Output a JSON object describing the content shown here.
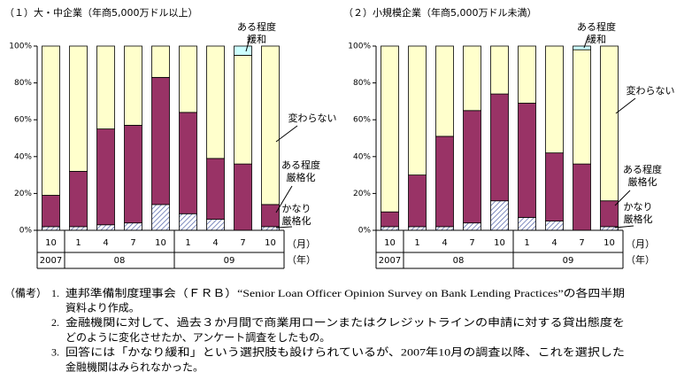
{
  "chart_data": [
    {
      "type": "stacked-bar",
      "title": "（１）大・中企業（年商5,000万ドル以上）",
      "categories": [
        "10",
        "1",
        "4",
        "7",
        "10",
        "1",
        "4",
        "7",
        "10"
      ],
      "year_groups": [
        {
          "label": "2007",
          "count": 1
        },
        {
          "label": "08",
          "count": 4
        },
        {
          "label": "09",
          "count": 4
        }
      ],
      "x_label": "（月）",
      "year_label": "（年）",
      "ylim": [
        0,
        100
      ],
      "yticks": [
        {
          "value": 0,
          "label": "0%"
        },
        {
          "value": 20,
          "label": "20%"
        },
        {
          "value": 40,
          "label": "40%"
        },
        {
          "value": 60,
          "label": "60%"
        },
        {
          "value": 80,
          "label": "80%"
        },
        {
          "value": 100,
          "label": "100%"
        }
      ],
      "series": [
        {
          "name": "かなり厳格化",
          "color": "#8f9bd0",
          "hatch": true,
          "values": [
            2,
            2,
            3,
            4,
            14,
            9,
            6,
            0,
            2
          ]
        },
        {
          "name": "ある程度厳格化",
          "color": "#993366",
          "values": [
            17,
            30,
            52,
            53,
            69,
            55,
            33,
            36,
            12
          ]
        },
        {
          "name": "変わらない",
          "color": "#ffffcc",
          "values": [
            81,
            68,
            45,
            43,
            17,
            36,
            61,
            59,
            86
          ]
        },
        {
          "name": "ある程度緩和",
          "color": "#ccffff",
          "values": [
            0,
            0,
            0,
            0,
            0,
            0,
            0,
            5,
            0
          ]
        }
      ]
    },
    {
      "type": "stacked-bar",
      "title": "（２）小規模企業（年商5,000万ドル未満）",
      "categories": [
        "10",
        "1",
        "4",
        "7",
        "10",
        "1",
        "4",
        "7",
        "10"
      ],
      "year_groups": [
        {
          "label": "2007",
          "count": 1
        },
        {
          "label": "08",
          "count": 4
        },
        {
          "label": "09",
          "count": 4
        }
      ],
      "x_label": "（月）",
      "year_label": "（年）",
      "ylim": [
        0,
        100
      ],
      "yticks": [
        {
          "value": 0,
          "label": "0%"
        },
        {
          "value": 20,
          "label": "20%"
        },
        {
          "value": 40,
          "label": "40%"
        },
        {
          "value": 60,
          "label": "60%"
        },
        {
          "value": 80,
          "label": "80%"
        },
        {
          "value": 100,
          "label": "100%"
        }
      ],
      "series": [
        {
          "name": "かなり厳格化",
          "color": "#8f9bd0",
          "hatch": true,
          "values": [
            2,
            2,
            2,
            4,
            16,
            7,
            5,
            0,
            2
          ]
        },
        {
          "name": "ある程度厳格化",
          "color": "#993366",
          "values": [
            8,
            28,
            49,
            61,
            58,
            62,
            37,
            36,
            14
          ]
        },
        {
          "name": "変わらない",
          "color": "#ffffcc",
          "values": [
            90,
            70,
            49,
            35,
            26,
            31,
            58,
            62,
            84
          ]
        },
        {
          "name": "ある程度緩和",
          "color": "#ccffff",
          "values": [
            0,
            0,
            0,
            0,
            0,
            0,
            0,
            2,
            0
          ]
        }
      ]
    }
  ],
  "notes": {
    "label": "（備考）",
    "items": [
      {
        "number": "1.",
        "lines": [
          "連邦準備制度理事会（ＦＲＢ）“Senior Loan Officer Opinion Survey on Bank Lending Practices”の各四半期",
          "資料より作成。"
        ]
      },
      {
        "number": "2.",
        "lines": [
          "金融機関に対して、過去３か月間で商業用ローンまたはクレジットラインの申請に対する貸出態度を",
          "どのように変化させたか、アンケート調査をしたもの。"
        ]
      },
      {
        "number": "3.",
        "lines": [
          "回答には「かなり緩和」という選択肢も設けられているが、2007年10月の調査以降、これを選択した",
          "金融機関はみられなかった。"
        ]
      }
    ]
  }
}
